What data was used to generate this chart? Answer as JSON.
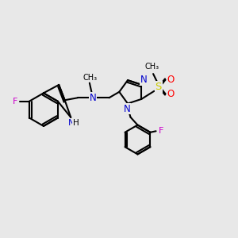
{
  "bg_color": "#e8e8e8",
  "bond_color": "#000000",
  "n_color": "#0000cd",
  "f_color": "#cc00cc",
  "s_color": "#cccc00",
  "o_color": "#ff0000",
  "line_width": 1.5,
  "font_size": 8,
  "xlim": [
    0,
    10
  ],
  "ylim": [
    0,
    10
  ]
}
